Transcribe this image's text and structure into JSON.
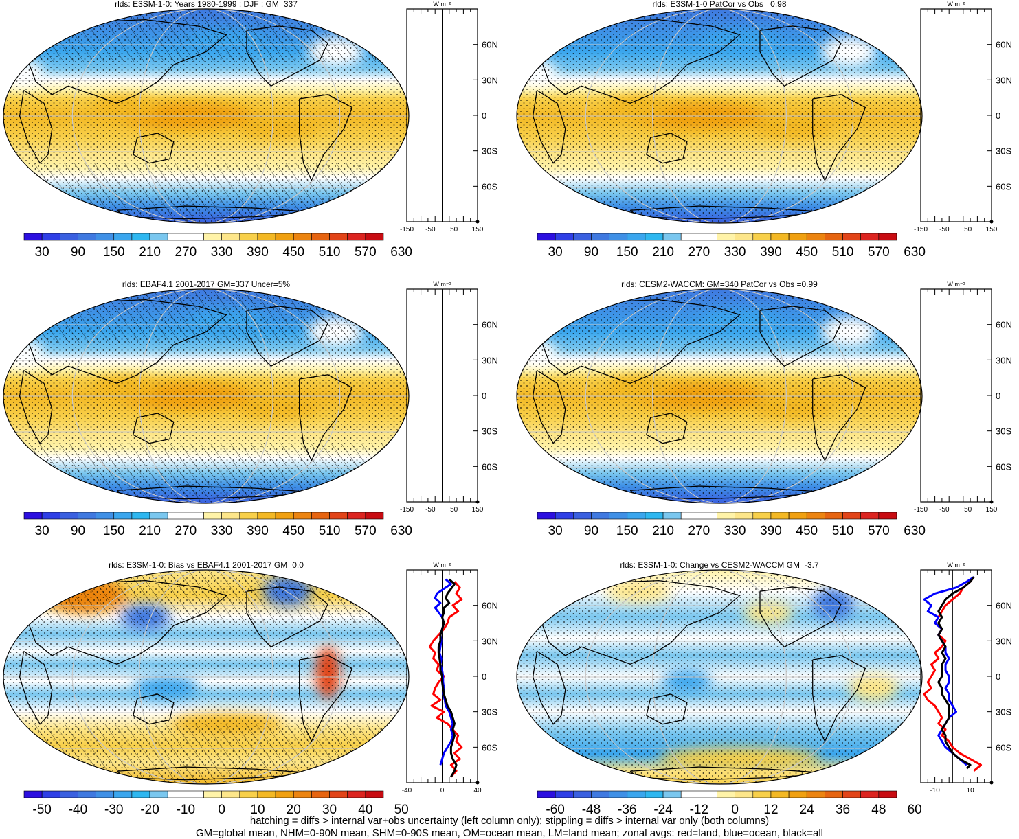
{
  "colors": {
    "sequential": [
      "#2c0fe0",
      "#2f3fe6",
      "#3a60e0",
      "#3f79e0",
      "#3f90e6",
      "#3aa6ee",
      "#2eb7f0",
      "#7ac7ef",
      "#ffffff",
      "#ffffff",
      "#fff3a8",
      "#fde68a",
      "#f8d04a",
      "#f3b824",
      "#f0a010",
      "#ec8410",
      "#e66410",
      "#e24418",
      "#dc2420",
      "#c80c12"
    ],
    "diverging": [
      "#2c0fe0",
      "#2f3fe6",
      "#3a60e0",
      "#3f79e0",
      "#3f90e6",
      "#3aa6ee",
      "#2eb7f0",
      "#7ac7ef",
      "#ffffff",
      "#ffffff",
      "#fff3a8",
      "#fde68a",
      "#f8d04a",
      "#f3b824",
      "#f0a010",
      "#ec8410",
      "#e66410",
      "#e24418",
      "#dc2420",
      "#c80c12"
    ],
    "land_line": "#ff0000",
    "ocean_line": "#0000ff",
    "all_line": "#000000"
  },
  "panels": [
    {
      "title": "rlds: E3SM-1-0: Years 1980-1999 : DJF : GM=337",
      "field": "climatology",
      "hatching": true,
      "colorbar_labels": [
        "30",
        "90",
        "150",
        "210",
        "270",
        "330",
        "390",
        "450",
        "510",
        "570",
        "630"
      ],
      "zonal": {
        "type": "line",
        "xlabel": "W m⁻²",
        "xticks": [
          "-150",
          "-50",
          "50",
          "150"
        ],
        "xlim": [
          -150,
          150
        ],
        "ylim": [
          -90,
          90
        ],
        "lat_labels": [
          "60N",
          "30N",
          "0",
          "30S",
          "60S"
        ],
        "series": []
      }
    },
    {
      "title": "rlds: E3SM-1-0 PatCor vs Obs =0.98",
      "field": "climatology",
      "hatching": false,
      "colorbar_labels": [
        "30",
        "90",
        "150",
        "210",
        "270",
        "330",
        "390",
        "450",
        "510",
        "570",
        "630"
      ],
      "zonal": {
        "type": "line",
        "xlabel": "W m⁻²",
        "xticks": [
          "-150",
          "-50",
          "50",
          "150"
        ],
        "xlim": [
          -150,
          150
        ],
        "ylim": [
          -90,
          90
        ],
        "lat_labels": [
          "60N",
          "30N",
          "0",
          "30S",
          "60S"
        ],
        "series": []
      }
    },
    {
      "title": "rlds: EBAF4.1 2001-2017 GM=337 Uncer=5%",
      "field": "climatology",
      "hatching": true,
      "colorbar_labels": [
        "30",
        "90",
        "150",
        "210",
        "270",
        "330",
        "390",
        "450",
        "510",
        "570",
        "630"
      ],
      "zonal": {
        "type": "line",
        "xlabel": "W m⁻²",
        "xticks": [
          "-150",
          "-50",
          "50",
          "150"
        ],
        "xlim": [
          -150,
          150
        ],
        "ylim": [
          -90,
          90
        ],
        "lat_labels": [
          "60N",
          "30N",
          "0",
          "30S",
          "60S"
        ],
        "series": []
      }
    },
    {
      "title": "rlds: CESM2-WACCM: GM=340 PatCor vs Obs =0.99",
      "field": "climatology",
      "hatching": false,
      "colorbar_labels": [
        "30",
        "90",
        "150",
        "210",
        "270",
        "330",
        "390",
        "450",
        "510",
        "570",
        "630"
      ],
      "zonal": {
        "type": "line",
        "xlabel": "W m⁻²",
        "xticks": [
          "-150",
          "-50",
          "50",
          "150"
        ],
        "xlim": [
          -150,
          150
        ],
        "ylim": [
          -90,
          90
        ],
        "lat_labels": [
          "60N",
          "30N",
          "0",
          "30S",
          "60S"
        ],
        "series": []
      }
    },
    {
      "title": "rlds: E3SM-1-0: Bias vs EBAF4.1 2001-2017 GM=0.0",
      "field": "bias",
      "hatching": true,
      "colorbar_labels": [
        "-50",
        "-40",
        "-30",
        "-20",
        "-10",
        "0",
        "10",
        "20",
        "30",
        "40",
        "50"
      ],
      "zonal": {
        "type": "line",
        "xlabel": "W m⁻²",
        "xticks": [
          "-40",
          "0",
          "40"
        ],
        "xlim": [
          -40,
          40
        ],
        "ylim": [
          -90,
          90
        ],
        "lat_labels": [
          "60N",
          "30N",
          "0",
          "30S",
          "60S"
        ],
        "series": [
          {
            "name": "land",
            "color": "red",
            "lat": [
              80,
              75,
              70,
              65,
              60,
              55,
              50,
              45,
              40,
              35,
              30,
              25,
              20,
              15,
              10,
              5,
              0,
              -5,
              -10,
              -15,
              -20,
              -25,
              -30,
              -35,
              -40,
              -45,
              -50,
              -55,
              -60,
              -65,
              -70,
              -75,
              -80,
              -85
            ],
            "values": [
              14,
              20,
              16,
              22,
              12,
              18,
              8,
              6,
              2,
              -4,
              -10,
              -14,
              -8,
              -10,
              -4,
              -6,
              2,
              -4,
              -8,
              -10,
              -2,
              -12,
              2,
              -6,
              6,
              12,
              18,
              16,
              22,
              14,
              20,
              10,
              16,
              10
            ]
          },
          {
            "name": "ocean",
            "color": "blue",
            "lat": [
              82,
              78,
              74,
              70,
              66,
              62,
              58,
              54,
              50,
              45,
              40,
              35,
              30,
              25,
              20,
              15,
              10,
              5,
              0,
              -5,
              -10,
              -15,
              -20,
              -25,
              -30,
              -35,
              -40,
              -45,
              -50,
              -55,
              -60,
              -65,
              -70,
              -75
            ],
            "values": [
              4,
              10,
              2,
              -6,
              -8,
              -2,
              -8,
              -4,
              0,
              2,
              0,
              -2,
              -1,
              -2,
              -3,
              -1,
              -2,
              0,
              1,
              1,
              2,
              1,
              3,
              4,
              8,
              10,
              12,
              10,
              12,
              10,
              6,
              2,
              0,
              -2
            ]
          },
          {
            "name": "all",
            "color": "black",
            "lat": [
              82,
              78,
              74,
              70,
              66,
              62,
              58,
              54,
              50,
              45,
              40,
              35,
              30,
              25,
              20,
              15,
              10,
              5,
              0,
              -5,
              -10,
              -15,
              -20,
              -25,
              -30,
              -35,
              -40,
              -45,
              -50,
              -55,
              -60,
              -65,
              -70,
              -75,
              -80,
              -85
            ],
            "values": [
              8,
              14,
              10,
              6,
              4,
              8,
              2,
              2,
              0,
              2,
              0,
              -2,
              -2,
              -4,
              -4,
              -3,
              -2,
              -2,
              0,
              0,
              1,
              2,
              4,
              6,
              10,
              12,
              14,
              12,
              14,
              12,
              10,
              10,
              12,
              16,
              14,
              10
            ]
          }
        ]
      }
    },
    {
      "title": "rlds: E3SM-1-0: Change vs CESM2-WACCM GM=-3.7",
      "field": "change",
      "hatching": false,
      "colorbar_labels": [
        "-60",
        "-48",
        "-36",
        "-24",
        "-12",
        "0",
        "12",
        "24",
        "36",
        "48",
        "60"
      ],
      "zonal": {
        "type": "line",
        "xlabel": "W m⁻²",
        "xticks": [
          "-10",
          "10"
        ],
        "xlim": [
          -18,
          22
        ],
        "ylim": [
          -90,
          90
        ],
        "lat_labels": [
          "60N",
          "30N",
          "0",
          "30S",
          "60S"
        ],
        "series": [
          {
            "name": "land",
            "color": "red",
            "lat": [
              84,
              80,
              75,
              70,
              65,
              60,
              55,
              50,
              45,
              40,
              35,
              30,
              25,
              20,
              15,
              10,
              5,
              0,
              -5,
              -10,
              -15,
              -20,
              -25,
              -30,
              -35,
              -40,
              -45,
              -50,
              -55,
              -60,
              -65,
              -70,
              -75,
              -80
            ],
            "values": [
              12,
              10,
              6,
              4,
              0,
              -4,
              -6,
              -8,
              -10,
              -6,
              -8,
              -4,
              -6,
              -10,
              -8,
              -12,
              -10,
              -12,
              -14,
              -12,
              -16,
              -14,
              -10,
              -8,
              -6,
              -8,
              -4,
              -6,
              -2,
              0,
              4,
              10,
              16,
              12
            ]
          },
          {
            "name": "ocean",
            "color": "blue",
            "lat": [
              84,
              80,
              75,
              70,
              65,
              60,
              55,
              50,
              45,
              40,
              35,
              30,
              25,
              20,
              15,
              10,
              5,
              0,
              -5,
              -10,
              -15,
              -20,
              -25,
              -30,
              -35,
              -40,
              -45,
              -50,
              -55,
              -60,
              -65,
              -70,
              -75
            ],
            "values": [
              12,
              8,
              2,
              -10,
              -16,
              -12,
              -14,
              -8,
              -10,
              -6,
              -8,
              -6,
              -4,
              -4,
              -2,
              -4,
              -4,
              -2,
              -2,
              -4,
              -2,
              -2,
              0,
              2,
              -2,
              -4,
              -6,
              -8,
              -6,
              -4,
              0,
              4,
              8
            ]
          },
          {
            "name": "all",
            "color": "black",
            "lat": [
              84,
              80,
              75,
              70,
              65,
              60,
              55,
              50,
              45,
              40,
              35,
              30,
              25,
              20,
              15,
              10,
              5,
              0,
              -5,
              -10,
              -15,
              -20,
              -25,
              -30,
              -35,
              -40,
              -45,
              -50,
              -55,
              -60,
              -65,
              -70,
              -75,
              -78
            ],
            "values": [
              12,
              10,
              6,
              0,
              -4,
              -6,
              -8,
              -6,
              -8,
              -6,
              -8,
              -6,
              -4,
              -6,
              -4,
              -6,
              -6,
              -6,
              -8,
              -6,
              -6,
              -4,
              -2,
              -2,
              -2,
              -4,
              -6,
              -4,
              -4,
              -2,
              0,
              4,
              10,
              8
            ]
          }
        ]
      }
    }
  ],
  "footer": {
    "line1": "hatching = diffs > internal var+obs uncertainty (left column only); stippling = diffs > internal var only (both columns)",
    "line2": "GM=global mean, NHM=0-90N mean, SHM=0-90S mean, OM=ocean mean, LM=land mean; zonal avgs: red=land, blue=ocean, black=all"
  }
}
